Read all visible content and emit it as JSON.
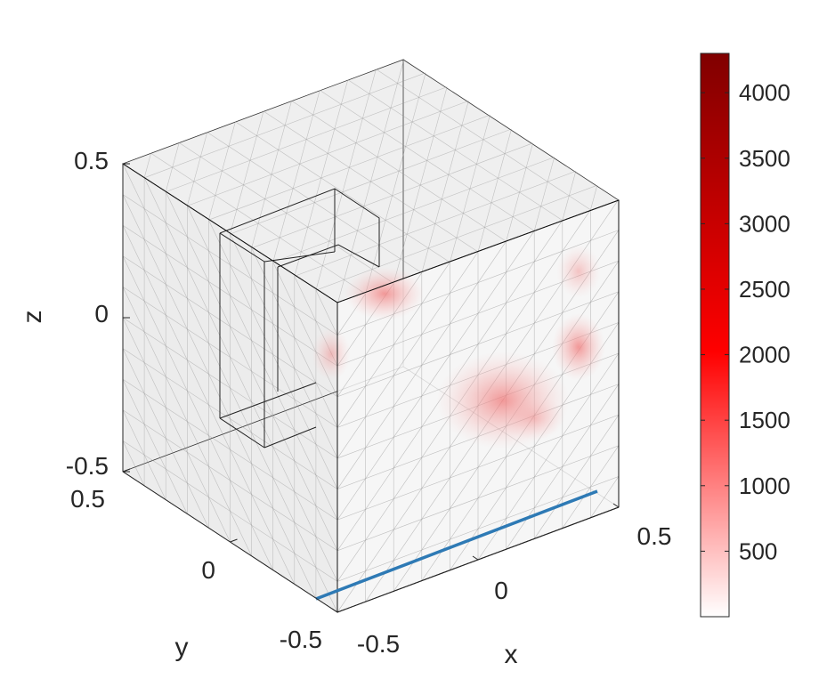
{
  "chart_data": {
    "type": "heatmap",
    "title": "",
    "xlabel": "x",
    "ylabel": "y",
    "zlabel": "z",
    "xlim": [
      -0.5,
      0.5
    ],
    "ylim": [
      -0.5,
      0.5
    ],
    "zlim": [
      -0.5,
      0.5
    ],
    "x_ticks": [
      "-0.5",
      "0",
      "0.5"
    ],
    "y_ticks": [
      "-0.5",
      "0",
      "0.5"
    ],
    "z_ticks": [
      "-0.5",
      "0",
      "0.5"
    ],
    "colorbar": {
      "range": [
        0,
        4300
      ],
      "ticks": [
        500,
        1000,
        1500,
        2000,
        2500,
        3000,
        3500,
        4000
      ],
      "tick_labels": [
        "500",
        "1000",
        "1500",
        "2000",
        "2500",
        "3000",
        "3500",
        "4000"
      ],
      "color_low": "#ffffff",
      "color_mid": "#ff0000",
      "color_high": "#800000"
    },
    "line_color": "#2e7ab5",
    "box_face_color": "#dcdcdc",
    "grid": true
  }
}
